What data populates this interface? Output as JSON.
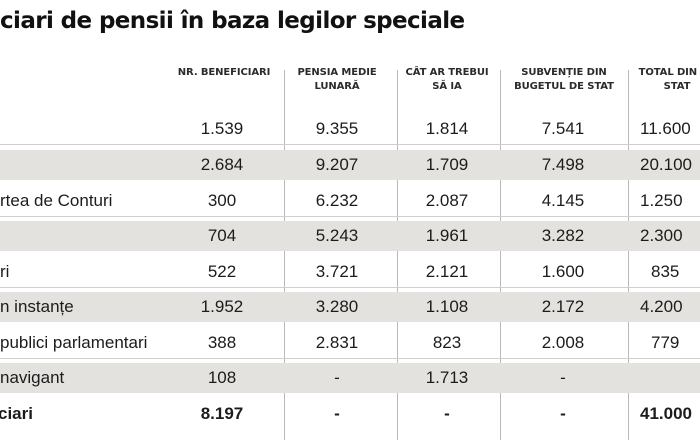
{
  "title": "ciari de pensii în baza legilor speciale",
  "columns": [
    "NR. BENEFICIARI",
    "PENSIA MEDIE LUNARĂ",
    "CÂT AR TREBUI SĂ IA",
    "SUBVENȚIE DIN BUGETUL DE STAT",
    "TOTAL DIN DE STAT"
  ],
  "rows": [
    {
      "label": "",
      "values": [
        "1.539",
        "9.355",
        "1.814",
        "7.541",
        "11.600"
      ]
    },
    {
      "label": "",
      "values": [
        "2.684",
        "9.207",
        "1.709",
        "7.498",
        "20.100"
      ]
    },
    {
      "label": "rtea de Conturi",
      "values": [
        "300",
        "6.232",
        "2.087",
        "4.145",
        "1.250"
      ]
    },
    {
      "label": "",
      "values": [
        "704",
        "5.243",
        "1.961",
        "3.282",
        "2.300"
      ]
    },
    {
      "label": "ri",
      "values": [
        "522",
        "3.721",
        "2.121",
        "1.600",
        "835"
      ]
    },
    {
      "label": "n instanțe",
      "values": [
        "1.952",
        "3.280",
        "1.108",
        "2.172",
        "4.200"
      ]
    },
    {
      "label": "publici parlamentari",
      "values": [
        "388",
        "2.831",
        "823",
        "2.008",
        "779"
      ]
    },
    {
      "label": "navigant",
      "values": [
        "108",
        "-",
        "1.713",
        "-",
        ""
      ]
    }
  ],
  "total": {
    "label": "ciari",
    "values": [
      "8.197",
      "-",
      "-",
      "-",
      "41.000"
    ]
  }
}
